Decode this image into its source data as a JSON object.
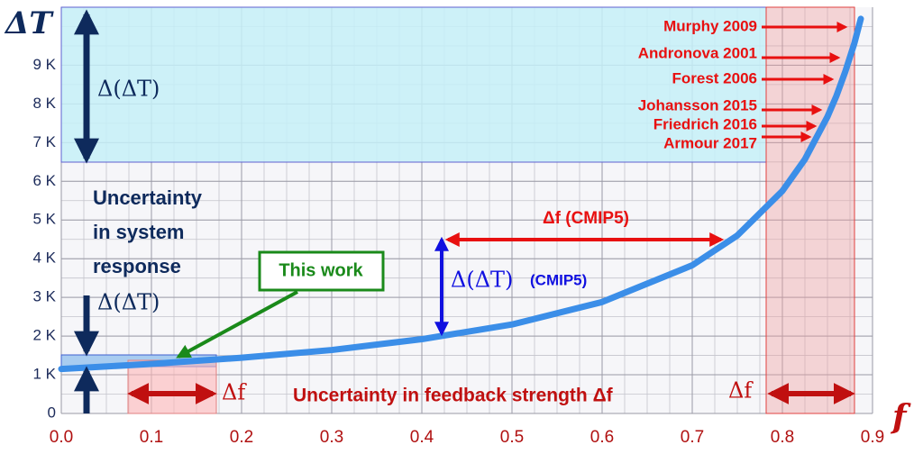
{
  "chart_data": {
    "type": "line",
    "title": "ΔT",
    "x_label": "f",
    "x": [
      0,
      0.1,
      0.2,
      0.3,
      0.4,
      0.5,
      0.6,
      0.7,
      0.75,
      0.8,
      0.825,
      0.85,
      0.86,
      0.87,
      0.88,
      0.887
    ],
    "series": [
      {
        "color": "#3b8ee8",
        "values": [
          1.15,
          1.28,
          1.44,
          1.64,
          1.92,
          2.3,
          2.88,
          3.83,
          4.6,
          5.75,
          6.57,
          7.67,
          8.21,
          8.85,
          9.58,
          10.2
        ]
      }
    ],
    "xlim": [
      0,
      0.9
    ],
    "ylim": [
      0,
      10.5
    ],
    "xticks": [
      {
        "value": 0,
        "label": "0.0"
      },
      0.1,
      0.2,
      0.3,
      0.4,
      0.5,
      0.6,
      0.7,
      0.8,
      0.9
    ],
    "yticks": [
      0,
      {
        "value": 1,
        "label": "1 K"
      },
      {
        "value": 2,
        "label": "2 K"
      },
      {
        "value": 3,
        "label": "3 K"
      },
      {
        "value": 4,
        "label": "4 K"
      },
      {
        "value": 5,
        "label": "5 K"
      },
      {
        "value": 6,
        "label": "6 K"
      },
      {
        "value": 7,
        "label": "7 K"
      },
      {
        "value": 8,
        "label": "8 K"
      },
      {
        "value": 9,
        "label": "9 K"
      }
    ],
    "grid": true,
    "annotations": [
      "Δ(ΔT)",
      "Uncertainty",
      "in system",
      "response",
      "Δ(ΔT)",
      "This work",
      "Δf (CMIP5)",
      "Δ(ΔT)",
      "(CMIP5)",
      "Δf",
      "Uncertainty in feedback strength Δf",
      "Δf",
      "Murphy 2009",
      "Andronova 2001",
      "Forest 2006",
      "Johansson 2015",
      "Friedrich 2016",
      "Armour 2017"
    ]
  }
}
